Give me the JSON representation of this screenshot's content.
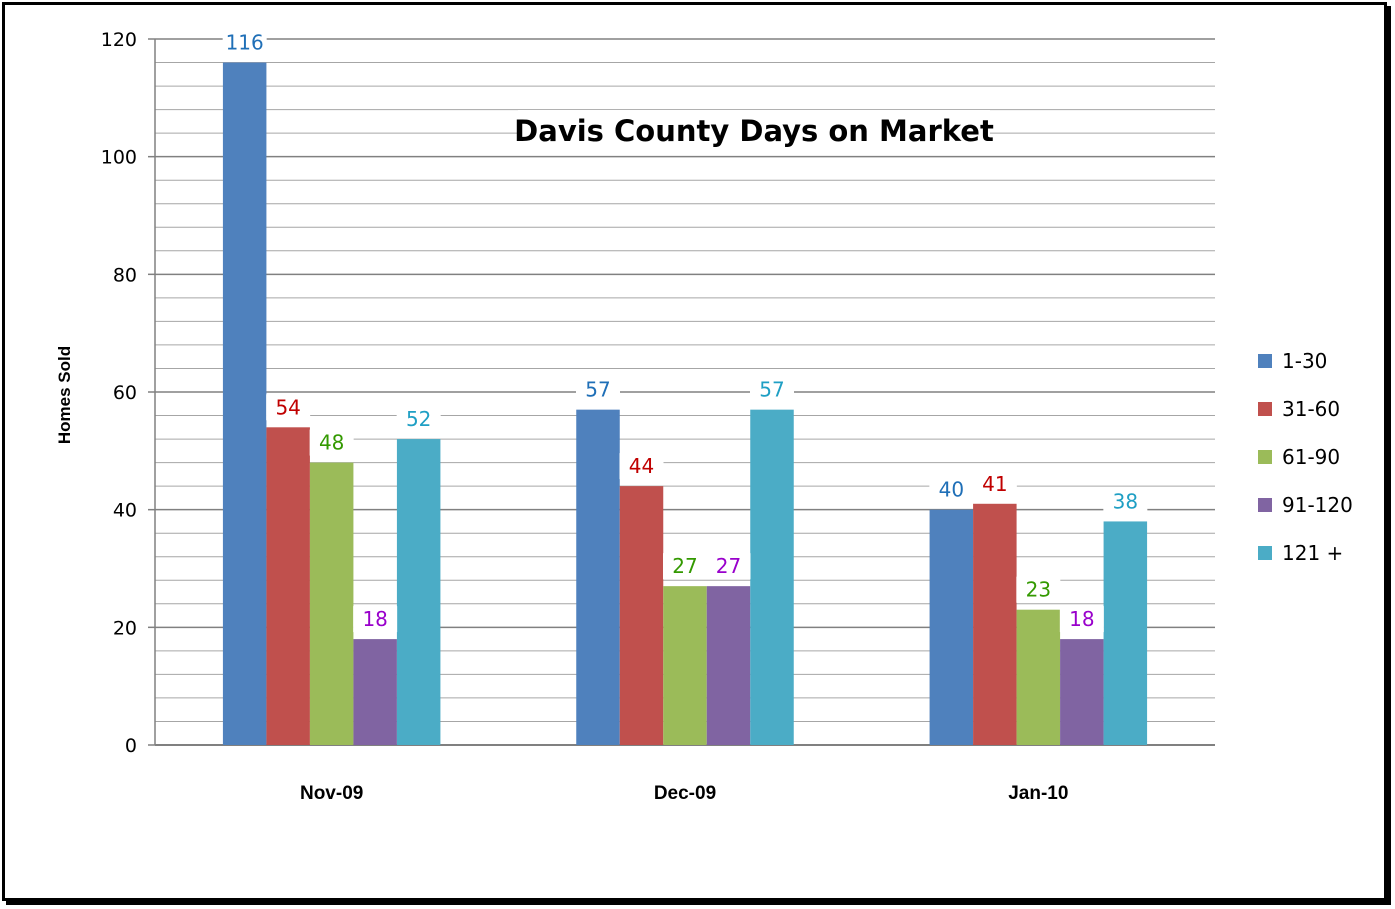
{
  "chart_data": {
    "type": "bar",
    "title": "Davis County Days on Market",
    "xlabel": "",
    "ylabel": "Homes Sold",
    "ylim": [
      0,
      120
    ],
    "y_ticks": [
      0,
      20,
      40,
      60,
      80,
      100,
      120
    ],
    "minor_grid_step": 4,
    "grid": true,
    "legend_position": "right",
    "categories": [
      "Nov-09",
      "Dec-09",
      "Jan-10"
    ],
    "series": [
      {
        "name": "1-30",
        "values": [
          116,
          57,
          40
        ],
        "color": "#4F81BD",
        "label_color": "#1F6FB7"
      },
      {
        "name": "31-60",
        "values": [
          54,
          44,
          41
        ],
        "color": "#C0504D",
        "label_color": "#C00000"
      },
      {
        "name": "61-90",
        "values": [
          48,
          27,
          23
        ],
        "color": "#9BBB59",
        "label_color": "#339900"
      },
      {
        "name": "91-120",
        "values": [
          18,
          27,
          18
        ],
        "color": "#8064A2",
        "label_color": "#9900CC"
      },
      {
        "name": "121 +",
        "values": [
          52,
          57,
          38
        ],
        "color": "#4BACC6",
        "label_color": "#1F9FC4"
      }
    ]
  }
}
